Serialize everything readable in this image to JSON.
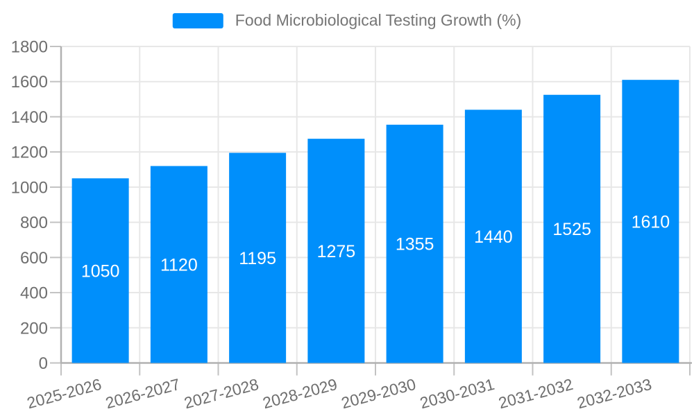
{
  "chart_data": {
    "type": "bar",
    "title": "Food Microbiological Testing Growth (%)",
    "categories": [
      "2025-2026",
      "2026-2027",
      "2027-2028",
      "2028-2029",
      "2029-2030",
      "2030-2031",
      "2031-2032",
      "2032-2033"
    ],
    "values": [
      1050,
      1120,
      1195,
      1275,
      1355,
      1440,
      1525,
      1610
    ],
    "xlabel": "",
    "ylabel": "",
    "ylim": [
      0,
      1800
    ],
    "y_ticks": [
      0,
      200,
      400,
      600,
      800,
      1000,
      1200,
      1400,
      1600,
      1800
    ],
    "grid": true,
    "legend_position": "top",
    "bar_color": "#008FFB",
    "bar_label_color": "#ffffff",
    "axis_text_color": "#6e6e6e",
    "grid_color": "#e7e7e7",
    "axis_line_color": "#b1b1b1",
    "tick_color": "#c2c2c2",
    "legend_text_color": "#757575"
  }
}
